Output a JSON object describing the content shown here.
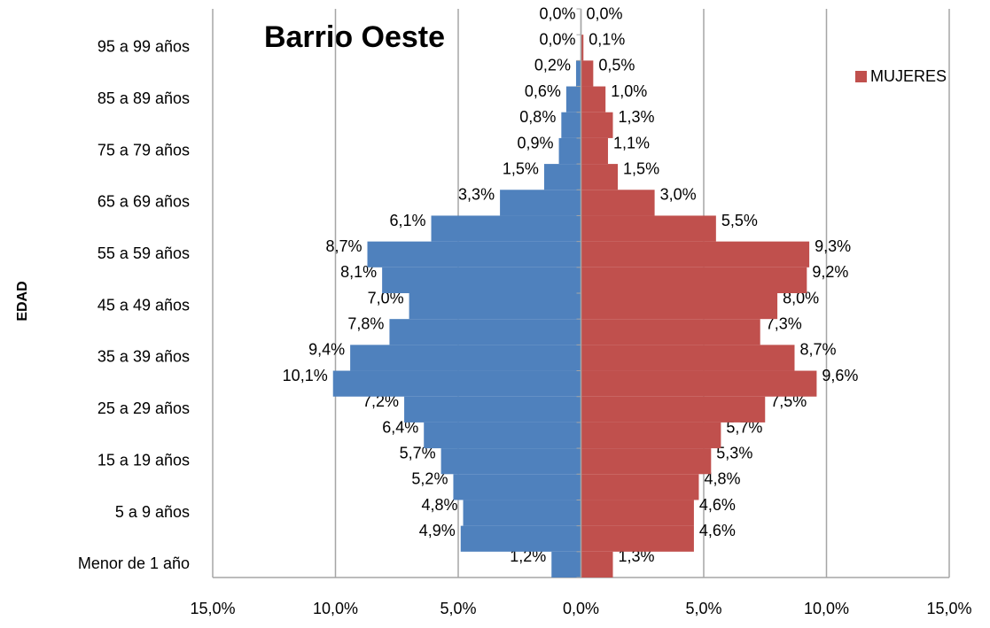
{
  "chart_data": {
    "type": "pyramid",
    "title": "Barrio Oeste",
    "ylabel": "EDAD",
    "categories": [
      "Menor de 1 año",
      null,
      "5 a 9 años",
      null,
      "15 a 19 años",
      null,
      "25 a 29 años",
      null,
      "35 a 39 años",
      null,
      "45 a 49 años",
      null,
      "55 a 59 años",
      null,
      "65 a 69 años",
      null,
      "75 a 79 años",
      null,
      "85 a 89 años",
      null,
      "95 a 99 años",
      null
    ],
    "series": [
      {
        "color": "#4f81bd",
        "side": "left",
        "values": [
          1.2,
          4.9,
          4.8,
          5.2,
          5.7,
          6.4,
          7.2,
          10.1,
          9.4,
          7.8,
          7.0,
          8.1,
          8.7,
          6.1,
          3.3,
          1.5,
          0.9,
          0.8,
          0.6,
          0.2,
          0.0,
          0.0
        ],
        "value_labels": [
          "1,2%",
          "4,9%",
          "4,8%",
          "5,2%",
          "5,7%",
          "6,4%",
          "7,2%",
          "10,1%",
          "9,4%",
          "7,8%",
          "7,0%",
          "8,1%",
          "8,7%",
          "6,1%",
          "3,3%",
          "1,5%",
          "0,9%",
          "0,8%",
          "0,6%",
          "0,2%",
          "0,0%",
          "0,0%"
        ]
      },
      {
        "name": "MUJERES",
        "color": "#c0504d",
        "side": "right",
        "values": [
          1.3,
          4.6,
          4.6,
          4.8,
          5.3,
          5.7,
          7.5,
          9.6,
          8.7,
          7.3,
          8.0,
          9.2,
          9.3,
          5.5,
          3.0,
          1.5,
          1.1,
          1.3,
          1.0,
          0.5,
          0.1,
          0.0
        ],
        "value_labels": [
          "1,3%",
          "4,6%",
          "4,6%",
          "4,8%",
          "5,3%",
          "5,7%",
          "7,5%",
          "9,6%",
          "8,7%",
          "7,3%",
          "8,0%",
          "9,2%",
          "9,3%",
          "5,5%",
          "3,0%",
          "1,5%",
          "1,1%",
          "1,3%",
          "1,0%",
          "0,5%",
          "0,1%",
          "0,0%"
        ]
      }
    ],
    "xlim": [
      -15,
      15
    ],
    "xticks": [
      {
        "value": -15,
        "label": "15,0%"
      },
      {
        "value": -10,
        "label": "10,0%"
      },
      {
        "value": -5,
        "label": "5,0%"
      },
      {
        "value": 0,
        "label": "0,0%"
      },
      {
        "value": 5,
        "label": "5,0%"
      },
      {
        "value": 10,
        "label": "10,0%"
      },
      {
        "value": 15,
        "label": "15,0%"
      }
    ],
    "grid": true
  }
}
